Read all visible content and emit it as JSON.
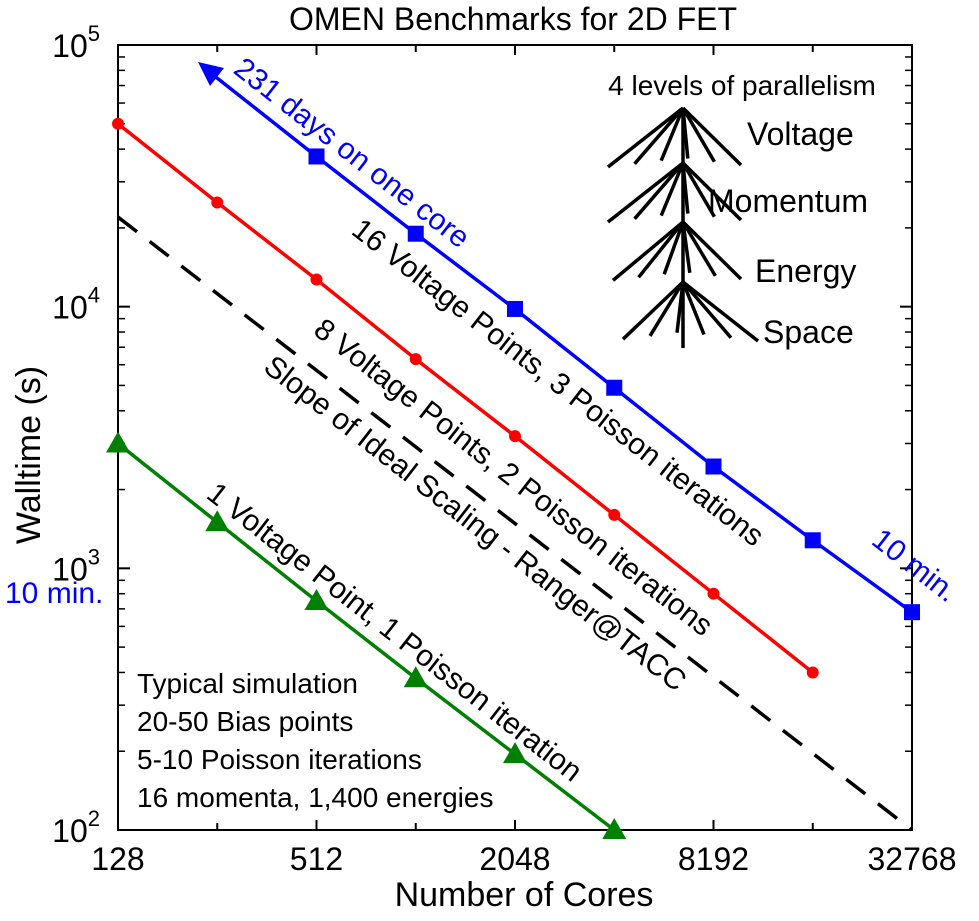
{
  "chart_data": {
    "type": "line",
    "title": "OMEN Benchmarks for 2D FET",
    "xlabel": "Number of Cores",
    "ylabel": "Walltime (s)",
    "x_scale": "log2",
    "y_scale": "log10",
    "xlim": [
      128,
      32768
    ],
    "ylim": [
      100,
      100000
    ],
    "x_ticks": [
      "128",
      "512",
      "2048",
      "8192",
      "32768"
    ],
    "y_ticks": [
      {
        "base": "10",
        "exp": "2"
      },
      {
        "base": "10",
        "exp": "3"
      },
      {
        "base": "10",
        "exp": "4"
      },
      {
        "base": "10",
        "exp": "5"
      }
    ],
    "series": [
      {
        "label": "16 Voltage Points, 3 Poisson iterations",
        "color": "#0000ff",
        "marker": "square",
        "x": [
          512,
          1024,
          2048,
          4096,
          8192,
          16384,
          32768
        ],
        "y": [
          37500,
          19000,
          9800,
          4900,
          2450,
          1280,
          680
        ]
      },
      {
        "label": "8 Voltage Points, 2 Poisson iterations",
        "color": "#ff0000",
        "marker": "circle",
        "x": [
          128,
          256,
          512,
          1024,
          2048,
          4096,
          8192,
          16384
        ],
        "y": [
          50000,
          25000,
          12700,
          6300,
          3200,
          1600,
          800,
          400
        ]
      },
      {
        "label": "1 Voltage Point, 1 Poisson iteration",
        "color": "#008000",
        "marker": "triangle",
        "x": [
          128,
          256,
          512,
          1024,
          2048,
          4096
        ],
        "y": [
          3000,
          1500,
          750,
          380,
          195,
          100
        ]
      }
    ],
    "ideal_line": {
      "label": "Slope of Ideal Scaling - Ranger@TACC",
      "color": "#000000",
      "x": [
        128,
        32768
      ],
      "y": [
        22000,
        100
      ]
    },
    "annotations": {
      "arrow_label": "231 days on one core",
      "ten_min_right": "10 min.",
      "ten_min_left": "10 min.",
      "parallelism_title": "4 levels of parallelism",
      "levels": [
        "Voltage",
        "Momentum",
        "Energy",
        "Space"
      ],
      "typical": [
        "Typical simulation",
        "20-50 Bias points",
        "5-10 Poisson iterations",
        "16 momenta, 1,400 energies"
      ]
    }
  }
}
